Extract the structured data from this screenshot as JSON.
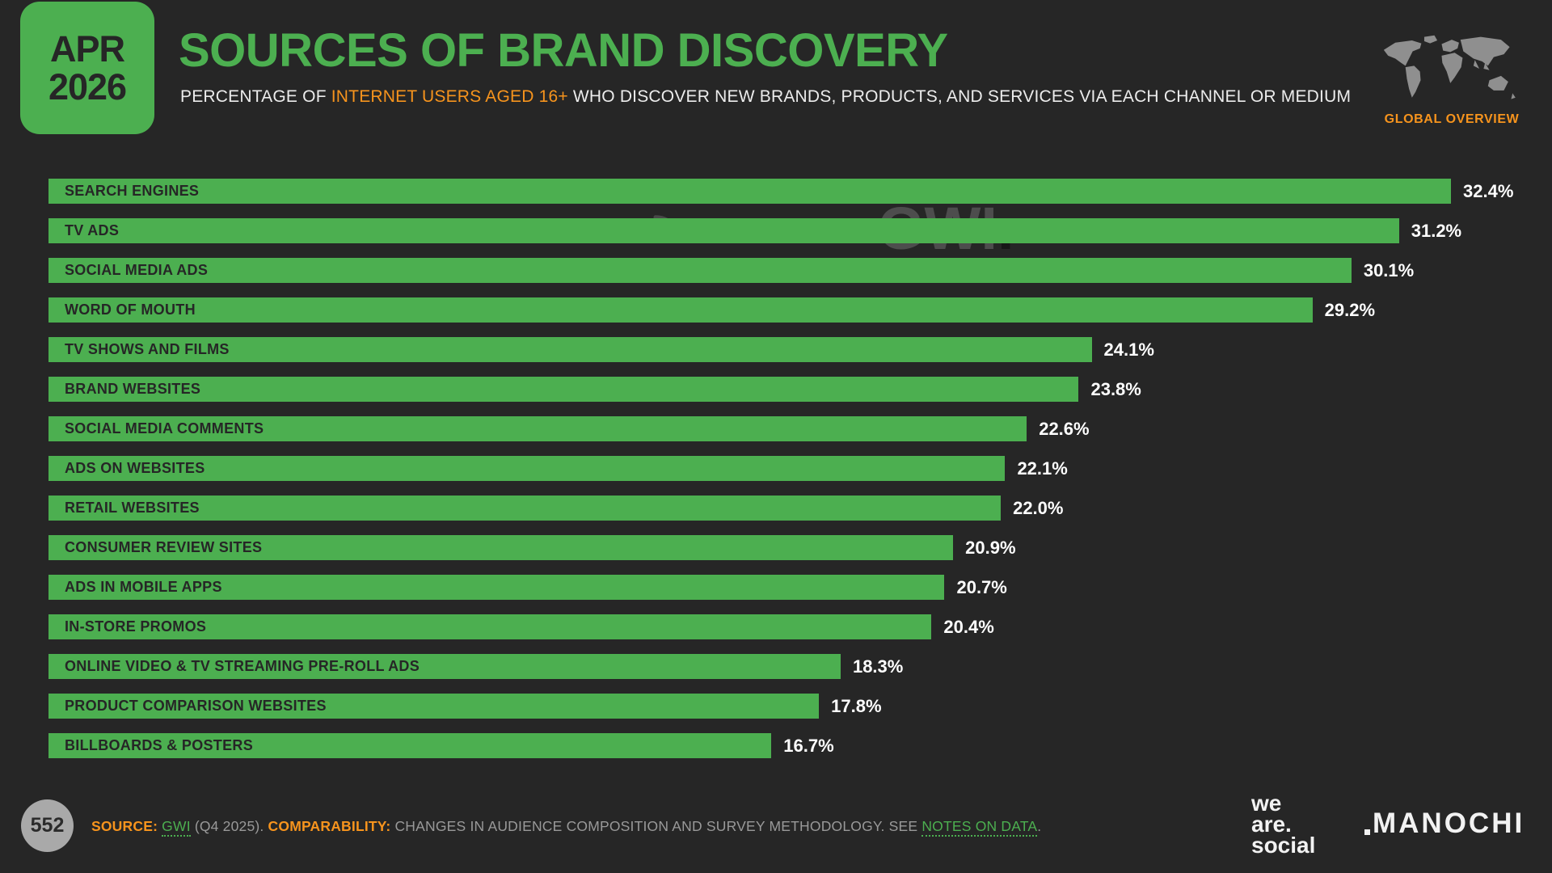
{
  "header": {
    "date_badge": {
      "month": "APR",
      "year": "2026"
    },
    "title": "SOURCES OF BRAND DISCOVERY",
    "subtitle_prefix": "PERCENTAGE OF ",
    "subtitle_highlight": "INTERNET USERS AGED 16+",
    "subtitle_suffix": " WHO DISCOVER NEW BRANDS, PRODUCTS, AND SERVICES VIA EACH CHANNEL OR MEDIUM",
    "overview_label": "GLOBAL OVERVIEW"
  },
  "watermark": {
    "datareportal": "DATAREPORTAL",
    "gwi": "GWI",
    "gwi_dot": "."
  },
  "chart_data": {
    "type": "bar",
    "orientation": "horizontal",
    "title": "SOURCES OF BRAND DISCOVERY",
    "xlabel": "",
    "ylabel": "",
    "xlim": [
      0,
      32.4
    ],
    "grid": false,
    "legend": "none",
    "bar_color": "#4CAF50",
    "categories": [
      "SEARCH ENGINES",
      "TV ADS",
      "SOCIAL MEDIA ADS",
      "WORD OF MOUTH",
      "TV SHOWS AND FILMS",
      "BRAND WEBSITES",
      "SOCIAL MEDIA COMMENTS",
      "ADS ON WEBSITES",
      "RETAIL WEBSITES",
      "CONSUMER REVIEW SITES",
      "ADS IN MOBILE APPS",
      "IN-STORE PROMOS",
      "ONLINE VIDEO & TV STREAMING PRE-ROLL ADS",
      "PRODUCT COMPARISON WEBSITES",
      "BILLBOARDS & POSTERS"
    ],
    "values": [
      32.4,
      31.2,
      30.1,
      29.2,
      24.1,
      23.8,
      22.6,
      22.1,
      22.0,
      20.9,
      20.7,
      20.4,
      18.3,
      17.8,
      16.7
    ],
    "value_labels": [
      "32.4%",
      "31.2%",
      "30.1%",
      "29.2%",
      "24.1%",
      "23.8%",
      "22.6%",
      "22.1%",
      "22.0%",
      "20.9%",
      "20.7%",
      "20.4%",
      "18.3%",
      "17.8%",
      "16.7%"
    ]
  },
  "footer": {
    "page_number": "552",
    "source_label": "SOURCE:",
    "source_link": "GWI",
    "source_rest": " (Q4 2025). ",
    "comparability_label": "COMPARABILITY:",
    "comparability_text": " CHANGES IN AUDIENCE COMPOSITION AND SURVEY METHODOLOGY. SEE ",
    "notes_link": "NOTES ON DATA",
    "period": ".",
    "wearesocial_lines": {
      "l1": "we",
      "l2": "are.",
      "l3": "social"
    },
    "brand": "MANOCHI"
  },
  "colors": {
    "background": "#262626",
    "accent_green": "#4CAF50",
    "accent_orange": "#F7941D",
    "bar_label": "#262626",
    "value_text": "#FFFFFF",
    "footer_text": "#999999",
    "map_gray": "#8F8F8F",
    "page_circle": "#A9A9A9"
  }
}
